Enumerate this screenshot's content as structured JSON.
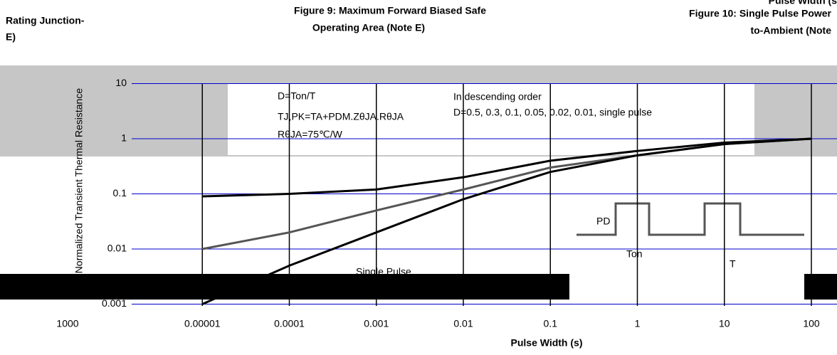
{
  "chart_data": {
    "type": "line",
    "title": [
      "Figure 9: Maximum Forward Biased Safe",
      "Operating Area (Note E)"
    ],
    "fragments": [
      "Rating Junction-",
      "E)",
      "Figure 10: Single Pulse Power",
      "to-Ambient (Note",
      "Pulse Width (s",
      "1000"
    ],
    "annotations": [
      "D=Ton/T",
      "TJ,PK=TA+PDM.ZθJA.RθJA",
      "RθJA=75℃/W",
      "In descending order",
      "D=0.5, 0.3, 0.1, 0.05, 0.02, 0.01, single pulse",
      "Single Pulse",
      "PD",
      "Ton",
      "T"
    ],
    "x_label": "Pulse Width (s)",
    "y_label": "ZθJA Normalized Transient Thermal Resistance",
    "log_x": true,
    "log_y": true,
    "grid": true,
    "x": [
      1e-05,
      0.0001,
      0.001,
      0.01,
      0.1,
      1,
      10,
      100
    ],
    "series": [
      {
        "color": "#000000",
        "values": [
          0.09,
          0.1,
          0.12,
          0.2,
          0.4,
          0.6,
          0.85,
          1
        ]
      },
      {
        "color": "#555555",
        "values": [
          0.01,
          0.02,
          0.05,
          0.12,
          0.3,
          0.5,
          0.8,
          1
        ]
      },
      {
        "color": "#000000",
        "values": [
          0.001,
          0.005,
          0.02,
          0.08,
          0.25,
          0.5,
          0.8,
          1
        ]
      }
    ],
    "xlim": [
      1e-06,
      100
    ],
    "ylim": [
      0.001,
      10
    ],
    "xticks": [
      1e-05,
      0.0001,
      0.001,
      0.01,
      0.1,
      1,
      10,
      100
    ],
    "yticks": [
      0.001,
      0.01,
      0.1,
      1,
      10
    ]
  }
}
